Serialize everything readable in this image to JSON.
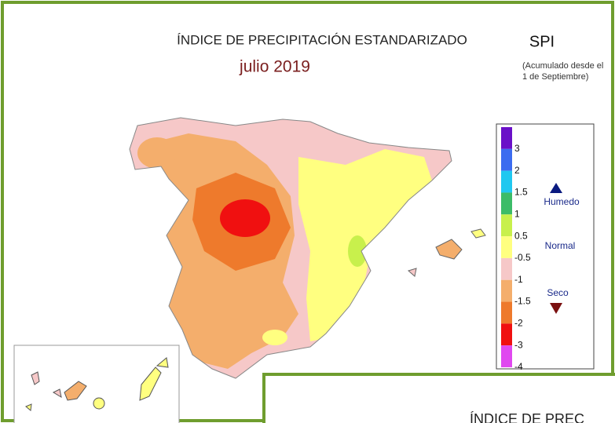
{
  "header": {
    "title": "ÍNDICE DE PRECIPITACIÓN ESTANDARIZADO",
    "subtitle": "julio 2019",
    "index": "SPI",
    "note": [
      "(Acumulado desde el",
      "1 de Septiembre)"
    ]
  },
  "legend": {
    "labels": [
      3,
      2,
      1.5,
      1,
      0.5,
      -0.5,
      -1,
      -1.5,
      -2,
      -3,
      -4
    ],
    "colors": [
      "#6a10c8",
      "#3c6cf0",
      "#20c8f0",
      "#3cbc68",
      "#c8f04c",
      "#ffff80",
      "#f6c8c8",
      "#f4ae6c",
      "#ee7a2c",
      "#f01010",
      "#e048f0"
    ],
    "wet": "Humedo",
    "normal": "Normal",
    "dry": "Seco"
  },
  "second_window": {
    "title": "ÍNDICE DE PREC"
  }
}
